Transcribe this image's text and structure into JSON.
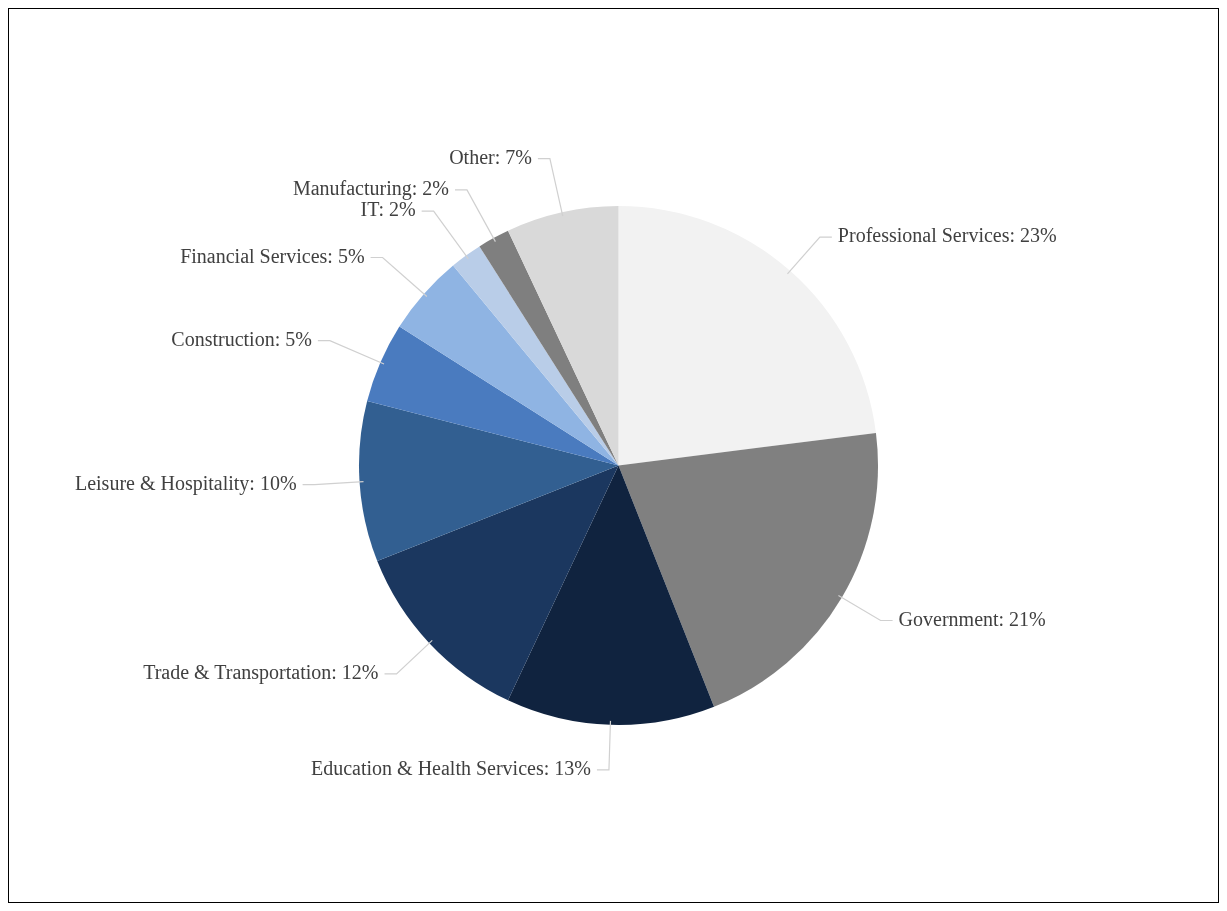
{
  "chart_data": {
    "type": "pie",
    "categories": [
      "Professional Services",
      "Government",
      "Education & Health Services",
      "Trade & Transportation",
      "Leisure & Hospitality",
      "Construction",
      "Financial Services",
      "IT",
      "Manufacturing",
      "Other"
    ],
    "values": [
      23,
      21,
      13,
      12,
      10,
      5,
      5,
      2,
      2,
      7
    ],
    "colors": [
      "#f2f2f2",
      "#808080",
      "#10233f",
      "#1b375f",
      "#325f91",
      "#4a7bbf",
      "#8fb4e3",
      "#b9cde8",
      "#7f7f7f",
      "#d9d9d9"
    ],
    "value_labels": [
      "23%",
      "21%",
      "13%",
      "12%",
      "10%",
      "5%",
      "5%",
      "2%",
      "2%",
      "7%"
    ],
    "legend": false
  }
}
